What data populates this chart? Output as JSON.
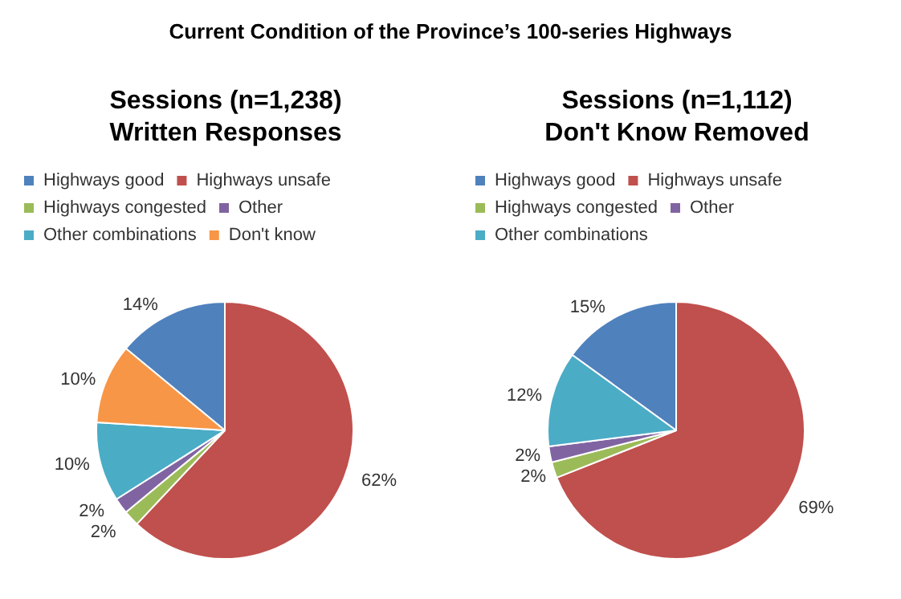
{
  "chart_data": [
    {
      "type": "other",
      "title": "Current Condition of the Province’s 100-series Highways"
    },
    {
      "type": "pie",
      "title": "Sessions (n=1,238)\nWritten Responses",
      "legend": "top",
      "categories": [
        "Highways good",
        "Highways unsafe",
        "Highways congested",
        "Other",
        "Other combinations",
        "Don't know"
      ],
      "values": [
        14,
        62,
        2,
        2,
        10,
        10
      ],
      "value_labels": [
        "14%",
        "62%",
        "2%",
        "2%",
        "10%",
        "10%"
      ],
      "colors": [
        "#4f81bd",
        "#c0504d",
        "#9bbb59",
        "#8064a2",
        "#4bacc6",
        "#f79646"
      ]
    },
    {
      "type": "pie",
      "title": "Sessions (n=1,112)\nDon't Know Removed",
      "legend": "top",
      "categories": [
        "Highways good",
        "Highways unsafe",
        "Highways congested",
        "Other",
        "Other combinations"
      ],
      "values": [
        15,
        69,
        2,
        2,
        12
      ],
      "value_labels": [
        "15%",
        "69%",
        "2%",
        "2%",
        "12%"
      ],
      "colors": [
        "#4f81bd",
        "#c0504d",
        "#9bbb59",
        "#8064a2",
        "#4bacc6"
      ]
    }
  ]
}
